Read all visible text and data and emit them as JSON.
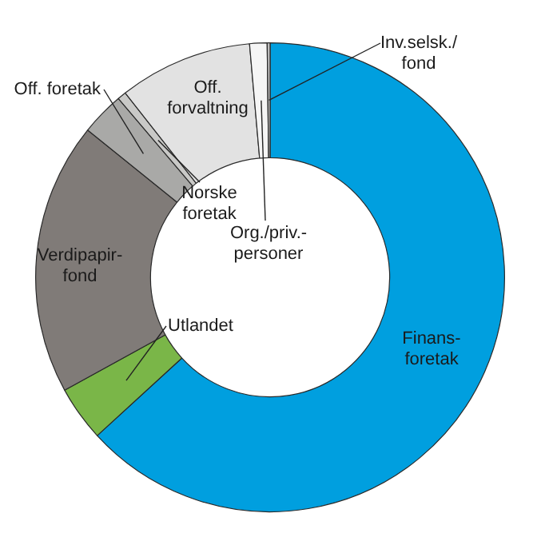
{
  "chart_data": {
    "type": "donut",
    "categories": [
      "Finans-foretak",
      "Utlandet",
      "Verdipapir-fond",
      "Off. foretak",
      "Norske foretak",
      "Off. forvaltning",
      "Org./priv.-personer",
      "Inv.selsk./fond"
    ],
    "values": [
      63.2,
      3.8,
      18.8,
      3.0,
      0.6,
      9.2,
      1.2,
      0.2
    ],
    "colors": [
      "#009fdf",
      "#7ab648",
      "#807b78",
      "#a9a9a7",
      "#c9c9c7",
      "#e2e2e2",
      "#f5f5f5",
      "#bdbdbd"
    ]
  }
}
